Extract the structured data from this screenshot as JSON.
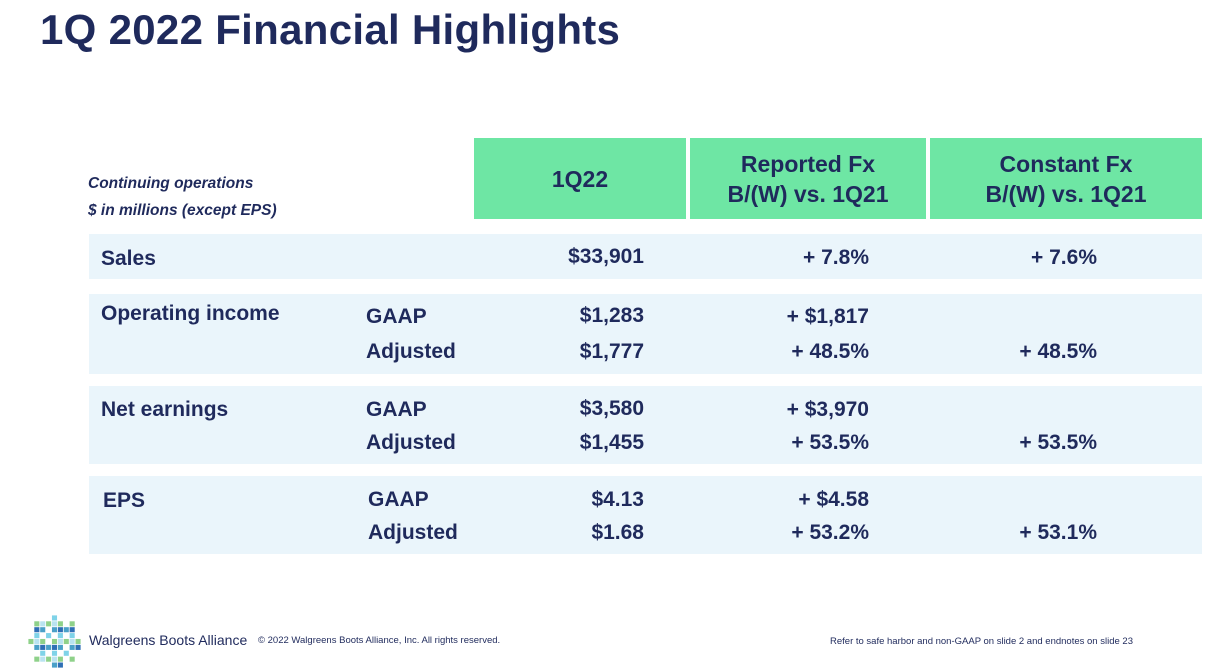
{
  "title": "1Q 2022 Financial Highlights",
  "note": {
    "line1": "Continuing operations",
    "line2": "$ in millions (except EPS)"
  },
  "headers": {
    "col1": "1Q22",
    "col2_line1": "Reported Fx",
    "col2_line2": "B/(W) vs. 1Q21",
    "col3_line1": "Constant Fx",
    "col3_line2": "B/(W) vs. 1Q21"
  },
  "rows": {
    "sales": {
      "label": "Sales",
      "value": "$33,901",
      "reported": "+ 7.8%",
      "constant": "+ 7.6%"
    },
    "operating_income": {
      "label": "Operating income",
      "gaap": {
        "label": "GAAP",
        "value": "$1,283",
        "reported": "+ $1,817",
        "constant": ""
      },
      "adjusted": {
        "label": "Adjusted",
        "value": "$1,777",
        "reported": "+ 48.5%",
        "constant": "+ 48.5%"
      }
    },
    "net_earnings": {
      "label": "Net earnings",
      "gaap": {
        "label": "GAAP",
        "value": "$3,580",
        "reported": "+ $3,970",
        "constant": ""
      },
      "adjusted": {
        "label": "Adjusted",
        "value": "$1,455",
        "reported": "+ 53.5%",
        "constant": "+ 53.5%"
      }
    },
    "eps": {
      "label": "EPS",
      "gaap": {
        "label": "GAAP",
        "value": "$4.13",
        "reported": "+ $4.58",
        "constant": ""
      },
      "adjusted": {
        "label": "Adjusted",
        "value": "$1.68",
        "reported": "+ 53.2%",
        "constant": "+ 53.1%"
      }
    }
  },
  "footer": {
    "brand": "Walgreens Boots Alliance",
    "copyright": "© 2022 Walgreens Boots Alliance, Inc. All rights reserved.",
    "reference": "Refer to safe harbor and non-GAAP on slide 2 and endnotes on slide 23"
  },
  "colors": {
    "navy": "#1f2a5c",
    "header_green": "#6ee6a4",
    "row_band": "#eaf5fb"
  },
  "icons": {
    "logo": "wba-mosaic-logo-icon"
  }
}
